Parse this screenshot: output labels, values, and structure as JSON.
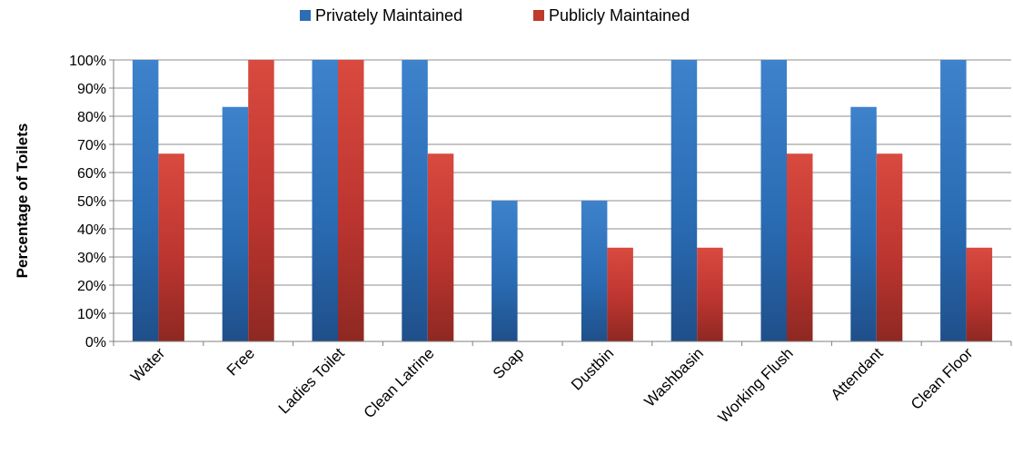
{
  "chart_data": {
    "type": "bar",
    "categories": [
      "Water",
      "Free",
      "Ladies Toilet",
      "Clean Latrine",
      "Soap",
      "Dustbin",
      "Washbasin",
      "Working Flush",
      "Attendant",
      "Clean Floor"
    ],
    "series": [
      {
        "name": "Privately Maintained",
        "color": "#2e6db4",
        "values": [
          100,
          83.3,
          100,
          100,
          50,
          50,
          100,
          100,
          83.3,
          100
        ]
      },
      {
        "name": "Publicly Maintained",
        "color": "#c0392b",
        "values": [
          66.7,
          100,
          100,
          66.7,
          0,
          33.3,
          33.3,
          66.7,
          66.7,
          33.3
        ]
      }
    ],
    "title": "",
    "xlabel": "",
    "ylabel": "Percentage of Toilets",
    "ylim": [
      0,
      100
    ],
    "yticks": [
      "0%",
      "10%",
      "20%",
      "30%",
      "40%",
      "50%",
      "60%",
      "70%",
      "80%",
      "90%",
      "100%"
    ],
    "grid": true,
    "legend_position": "top"
  }
}
